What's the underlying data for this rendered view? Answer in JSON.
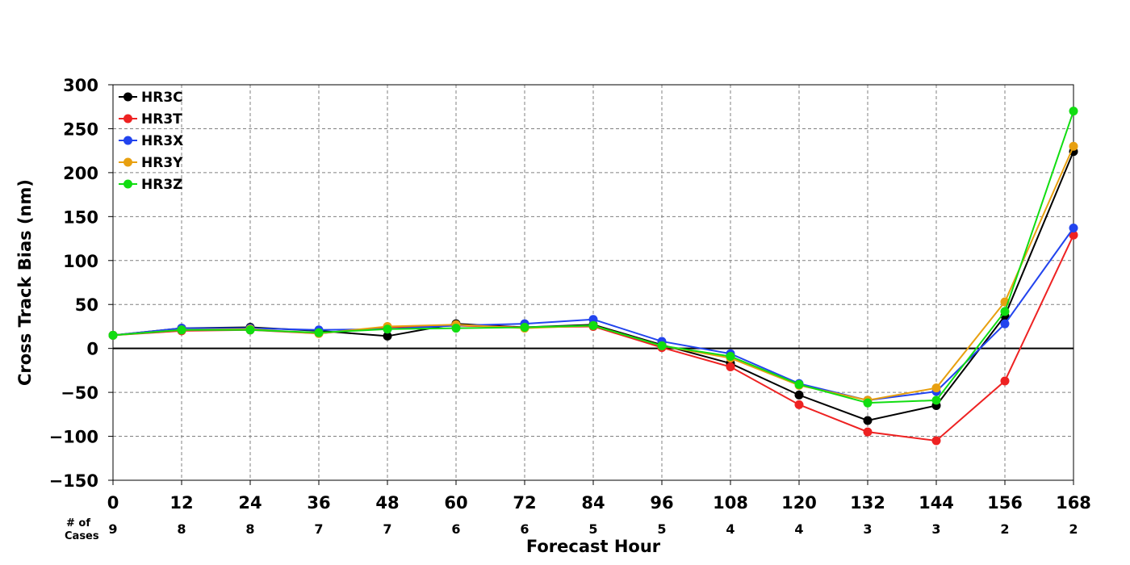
{
  "chart_data": {
    "type": "line",
    "xlabel": "Forecast Hour",
    "ylabel": "Cross Track Bias (nm)",
    "x": [
      0,
      12,
      24,
      36,
      48,
      60,
      72,
      84,
      96,
      108,
      120,
      132,
      144,
      156,
      168
    ],
    "xlim": [
      0,
      168
    ],
    "ylim": [
      -150,
      300
    ],
    "yticks": [
      -150,
      -100,
      -50,
      0,
      50,
      100,
      150,
      200,
      250,
      300
    ],
    "grid": true,
    "legend_position": "top-left",
    "cases_label": [
      "# of",
      "Cases"
    ],
    "cases": [
      9,
      8,
      8,
      7,
      7,
      6,
      6,
      5,
      5,
      4,
      4,
      3,
      3,
      2,
      2
    ],
    "series": [
      {
        "name": "HR3C",
        "color": "#000000",
        "values": [
          15,
          23,
          24,
          20,
          14,
          28,
          24,
          27,
          4,
          -17,
          -53,
          -82,
          -65,
          37,
          224
        ]
      },
      {
        "name": "HR3T",
        "color": "#ee2222",
        "values": [
          15,
          20,
          21,
          17,
          24,
          26,
          24,
          25,
          1,
          -21,
          -64,
          -95,
          -105,
          -37,
          129
        ]
      },
      {
        "name": "HR3X",
        "color": "#2244ee",
        "values": [
          15,
          23,
          23,
          21,
          22,
          26,
          28,
          33,
          8,
          -6,
          -40,
          -59,
          -49,
          28,
          137
        ]
      },
      {
        "name": "HR3Y",
        "color": "#e8a010",
        "values": [
          15,
          21,
          22,
          17,
          25,
          27,
          23,
          26,
          3,
          -11,
          -42,
          -59,
          -45,
          53,
          230
        ]
      },
      {
        "name": "HR3Z",
        "color": "#11dd11",
        "values": [
          15,
          21,
          21,
          18,
          22,
          23,
          24,
          26,
          3,
          -9,
          -41,
          -62,
          -59,
          42,
          270
        ]
      }
    ]
  }
}
